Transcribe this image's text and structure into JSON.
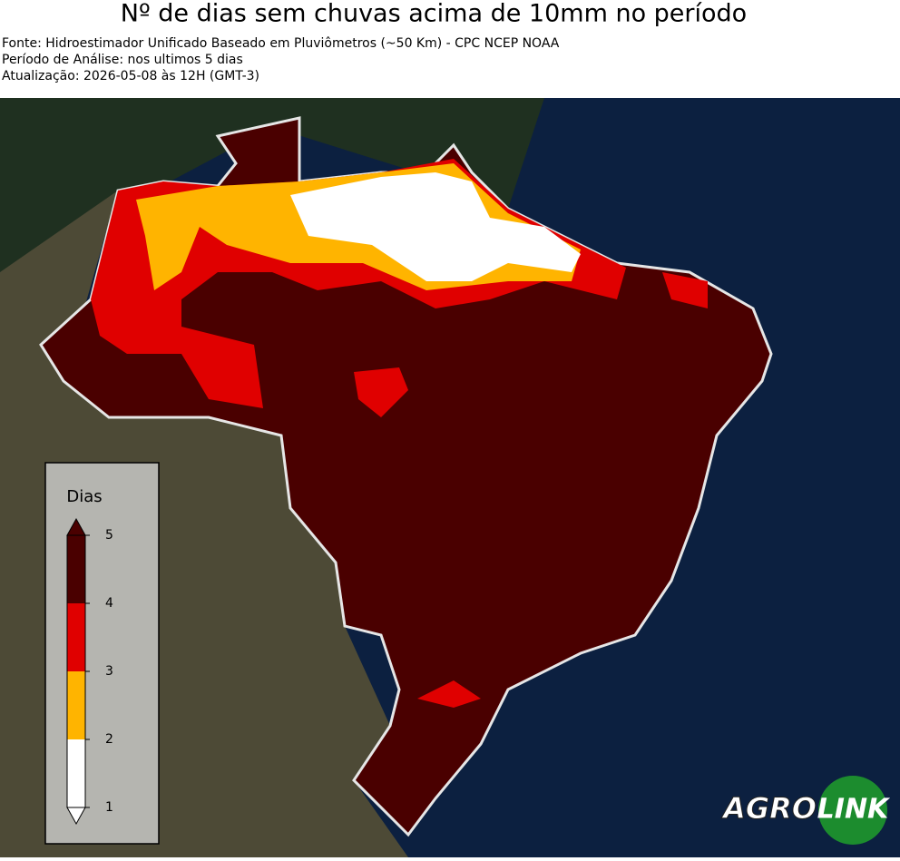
{
  "header": {
    "title": "Nº de dias sem chuvas acima de 10mm no período",
    "lines": [
      "Fonte: Hidroestimador Unificado Baseado em Pluviômetros (~50 Km) - CPC NCEP NOAA",
      "Período de Análise: nos ultimos 5 dias",
      "Atualização: 2026-05-08 às 12H (GMT-3)"
    ]
  },
  "legend": {
    "title": "Dias",
    "ticks": [
      1,
      2,
      3,
      4,
      5
    ],
    "colors": [
      "#ffffff",
      "#ffb400",
      "#e00000",
      "#4a0000"
    ]
  },
  "logo": {
    "left": "AGRO",
    "right": "LINK"
  }
}
